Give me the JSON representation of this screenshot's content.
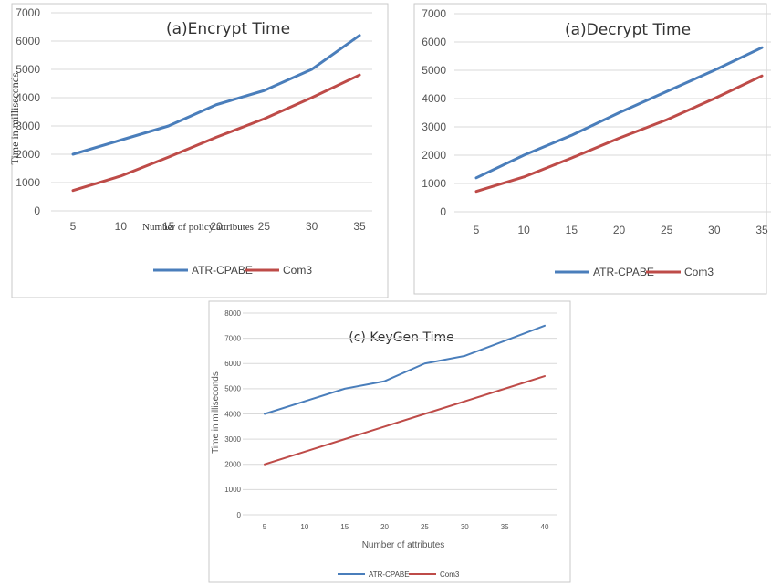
{
  "colors": {
    "series1": "#4a7ebb",
    "series2": "#be4b48",
    "grid": "#d9d9d9",
    "frame": "#c9c9c9"
  },
  "chart_data": [
    {
      "type": "line",
      "title": "(a)Encrypt Time",
      "ylabel": "Time in milliseconds",
      "xlabel": "Number of policy attributes",
      "categories": [
        "5",
        "10",
        "15",
        "20",
        "25",
        "30",
        "35"
      ],
      "yticks": [
        "0",
        "1000",
        "2000",
        "3000",
        "4000",
        "5000",
        "6000",
        "7000"
      ],
      "ylim": [
        0,
        7000
      ],
      "series": [
        {
          "name": "ATR-CPABE",
          "values": [
            2000,
            2500,
            3000,
            3750,
            4250,
            5000,
            6200
          ]
        },
        {
          "name": "Com3",
          "values": [
            720,
            1230,
            1900,
            2600,
            3250,
            4000,
            4800
          ]
        }
      ],
      "legend": "bottom"
    },
    {
      "type": "line",
      "title": "(a)Decrypt Time",
      "ylabel": "",
      "xlabel": "",
      "categories": [
        "5",
        "10",
        "15",
        "20",
        "25",
        "30",
        "35"
      ],
      "yticks": [
        "0",
        "1000",
        "2000",
        "3000",
        "4000",
        "5000",
        "6000",
        "7000"
      ],
      "ylim": [
        0,
        7000
      ],
      "series": [
        {
          "name": "ATR-CPABE",
          "values": [
            1200,
            2000,
            2700,
            3500,
            4250,
            5000,
            5800
          ]
        },
        {
          "name": "Com3",
          "values": [
            720,
            1230,
            1900,
            2600,
            3250,
            4000,
            4800
          ]
        }
      ],
      "legend": "bottom"
    },
    {
      "type": "line",
      "title": "(c) KeyGen Time",
      "ylabel": "Time in milliseconds",
      "xlabel": "Number of attributes",
      "categories": [
        "5",
        "10",
        "15",
        "20",
        "25",
        "30",
        "35",
        "40"
      ],
      "yticks": [
        "0",
        "1000",
        "2000",
        "3000",
        "4000",
        "5000",
        "6000",
        "7000",
        "8000"
      ],
      "ylim": [
        0,
        8000
      ],
      "series": [
        {
          "name": "ATR-CPABE",
          "values": [
            4000,
            4500,
            5000,
            5300,
            6000,
            6300,
            6900,
            7500
          ]
        },
        {
          "name": "Com3",
          "values": [
            2000,
            2500,
            3000,
            3500,
            4000,
            4500,
            5000,
            5500
          ]
        }
      ],
      "legend": "bottom"
    }
  ]
}
